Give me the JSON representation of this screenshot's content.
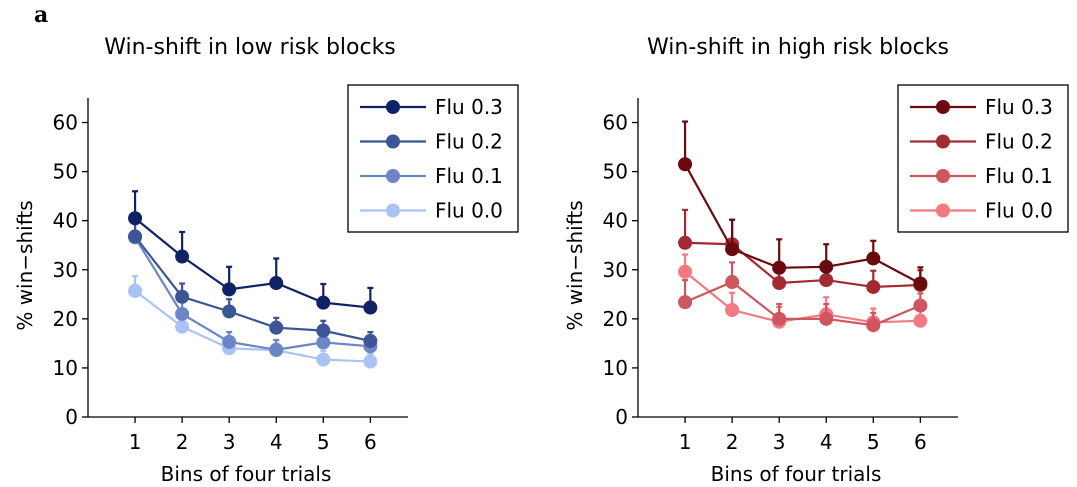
{
  "panel_label": "a",
  "chart_data": [
    {
      "type": "line",
      "title": "Win-shift in low risk blocks",
      "xlabel": "Bins of four trials",
      "ylabel": "% win−shifts",
      "x": [
        1,
        2,
        3,
        4,
        5,
        6
      ],
      "xticks": [
        "1",
        "2",
        "3",
        "4",
        "5",
        "6"
      ],
      "xlim": [
        0.0,
        6.8
      ],
      "ylim": [
        0,
        65
      ],
      "yticks": [
        0,
        10,
        20,
        30,
        40,
        50,
        60
      ],
      "legend_position": "top-right",
      "grid": false,
      "series": [
        {
          "name": "Flu 0.3",
          "color": "#0f2266",
          "values": [
            40.5,
            32.7,
            26.0,
            27.3,
            23.3,
            22.3
          ],
          "error": [
            5.5,
            5.0,
            4.6,
            5.0,
            3.8,
            4.0
          ]
        },
        {
          "name": "Flu 0.2",
          "color": "#3b5596",
          "values": [
            36.8,
            24.5,
            21.5,
            18.2,
            17.6,
            15.5
          ],
          "error": [
            4.0,
            2.7,
            2.5,
            2.0,
            2.0,
            1.8
          ]
        },
        {
          "name": "Flu 0.1",
          "color": "#6a86c4",
          "values": [
            36.6,
            21.0,
            15.3,
            13.7,
            15.2,
            14.4
          ],
          "error": [
            3.5,
            2.5,
            2.0,
            2.0,
            2.0,
            1.8
          ]
        },
        {
          "name": "Flu 0.0",
          "color": "#a9c3f5",
          "values": [
            25.7,
            18.4,
            14.0,
            13.6,
            11.7,
            11.3
          ],
          "error": [
            3.0,
            2.5,
            2.0,
            2.0,
            1.8,
            1.6
          ]
        }
      ]
    },
    {
      "type": "line",
      "title": "Win-shift in high risk blocks",
      "xlabel": "Bins of four trials",
      "ylabel": "% win−shifts",
      "x": [
        1,
        2,
        3,
        4,
        5,
        6
      ],
      "xticks": [
        "1",
        "2",
        "3",
        "4",
        "5",
        "6"
      ],
      "xlim": [
        0.0,
        6.8
      ],
      "ylim": [
        0,
        65
      ],
      "yticks": [
        0,
        10,
        20,
        30,
        40,
        50,
        60
      ],
      "legend_position": "top-right",
      "grid": false,
      "series": [
        {
          "name": "Flu 0.3",
          "color": "#6b0a0e",
          "values": [
            51.5,
            34.2,
            30.4,
            30.6,
            32.3,
            27.2
          ],
          "error": [
            8.7,
            6.0,
            5.8,
            4.6,
            3.6,
            3.3
          ]
        },
        {
          "name": "Flu 0.2",
          "color": "#a32a33",
          "values": [
            35.5,
            35.2,
            27.3,
            27.9,
            26.5,
            26.9
          ],
          "error": [
            6.7,
            5.0,
            3.5,
            3.5,
            3.3,
            3.0
          ]
        },
        {
          "name": "Flu 0.1",
          "color": "#cf555e",
          "values": [
            23.4,
            27.5,
            20.0,
            20.0,
            18.7,
            22.7
          ],
          "error": [
            4.5,
            4.0,
            3.0,
            3.0,
            2.5,
            2.5
          ]
        },
        {
          "name": "Flu 0.0",
          "color": "#f27a80",
          "values": [
            29.6,
            21.8,
            19.4,
            20.9,
            19.3,
            19.6
          ],
          "error": [
            3.5,
            3.5,
            3.0,
            3.5,
            2.8,
            2.0
          ]
        }
      ]
    }
  ]
}
